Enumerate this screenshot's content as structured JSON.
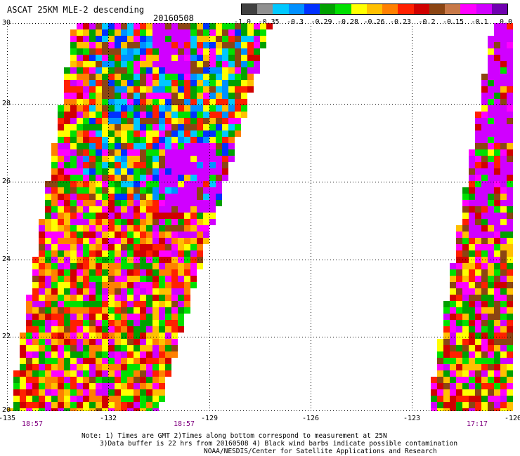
{
  "header": {
    "title": "ASCAT 25KM MLE-2 descending",
    "date": "20160508"
  },
  "colorbar": {
    "colors": [
      "#404040",
      "#909090",
      "#00c8ff",
      "#0090ff",
      "#0030ff",
      "#00a000",
      "#00e000",
      "#ffff00",
      "#ffc000",
      "#ff8000",
      "#ff2000",
      "#d00000",
      "#8b4513",
      "#c87848",
      "#ff00ff",
      "#d000ff",
      "#7000b0"
    ],
    "labels": [
      "-1.0",
      "-0.35",
      "-0.3",
      "-0.29",
      "-0.28",
      "-0.26",
      "-0.23",
      "-0.2",
      "-0.15",
      "-0.1",
      "0.0"
    ]
  },
  "axes": {
    "lat_ticks": [
      "30",
      "28",
      "26",
      "24",
      "22",
      "20"
    ],
    "lon_ticks": [
      "-135",
      "-132",
      "-129",
      "-126",
      "-123",
      "-120"
    ],
    "lat_range": [
      20,
      30
    ],
    "lon_range": [
      -135,
      -120
    ],
    "grid": "dotted"
  },
  "times": [
    "18:57",
    "18:57",
    "17:17"
  ],
  "notes": [
    "Note: 1) Times are GMT 2)Times along bottom correspond to measurement at 25N",
    "3)Data buffer is 22 hrs from 20160508 4) Black wind barbs indicate possible contamination",
    "NOAA/NESDIS/Center for Satellite Applications and Research"
  ]
}
